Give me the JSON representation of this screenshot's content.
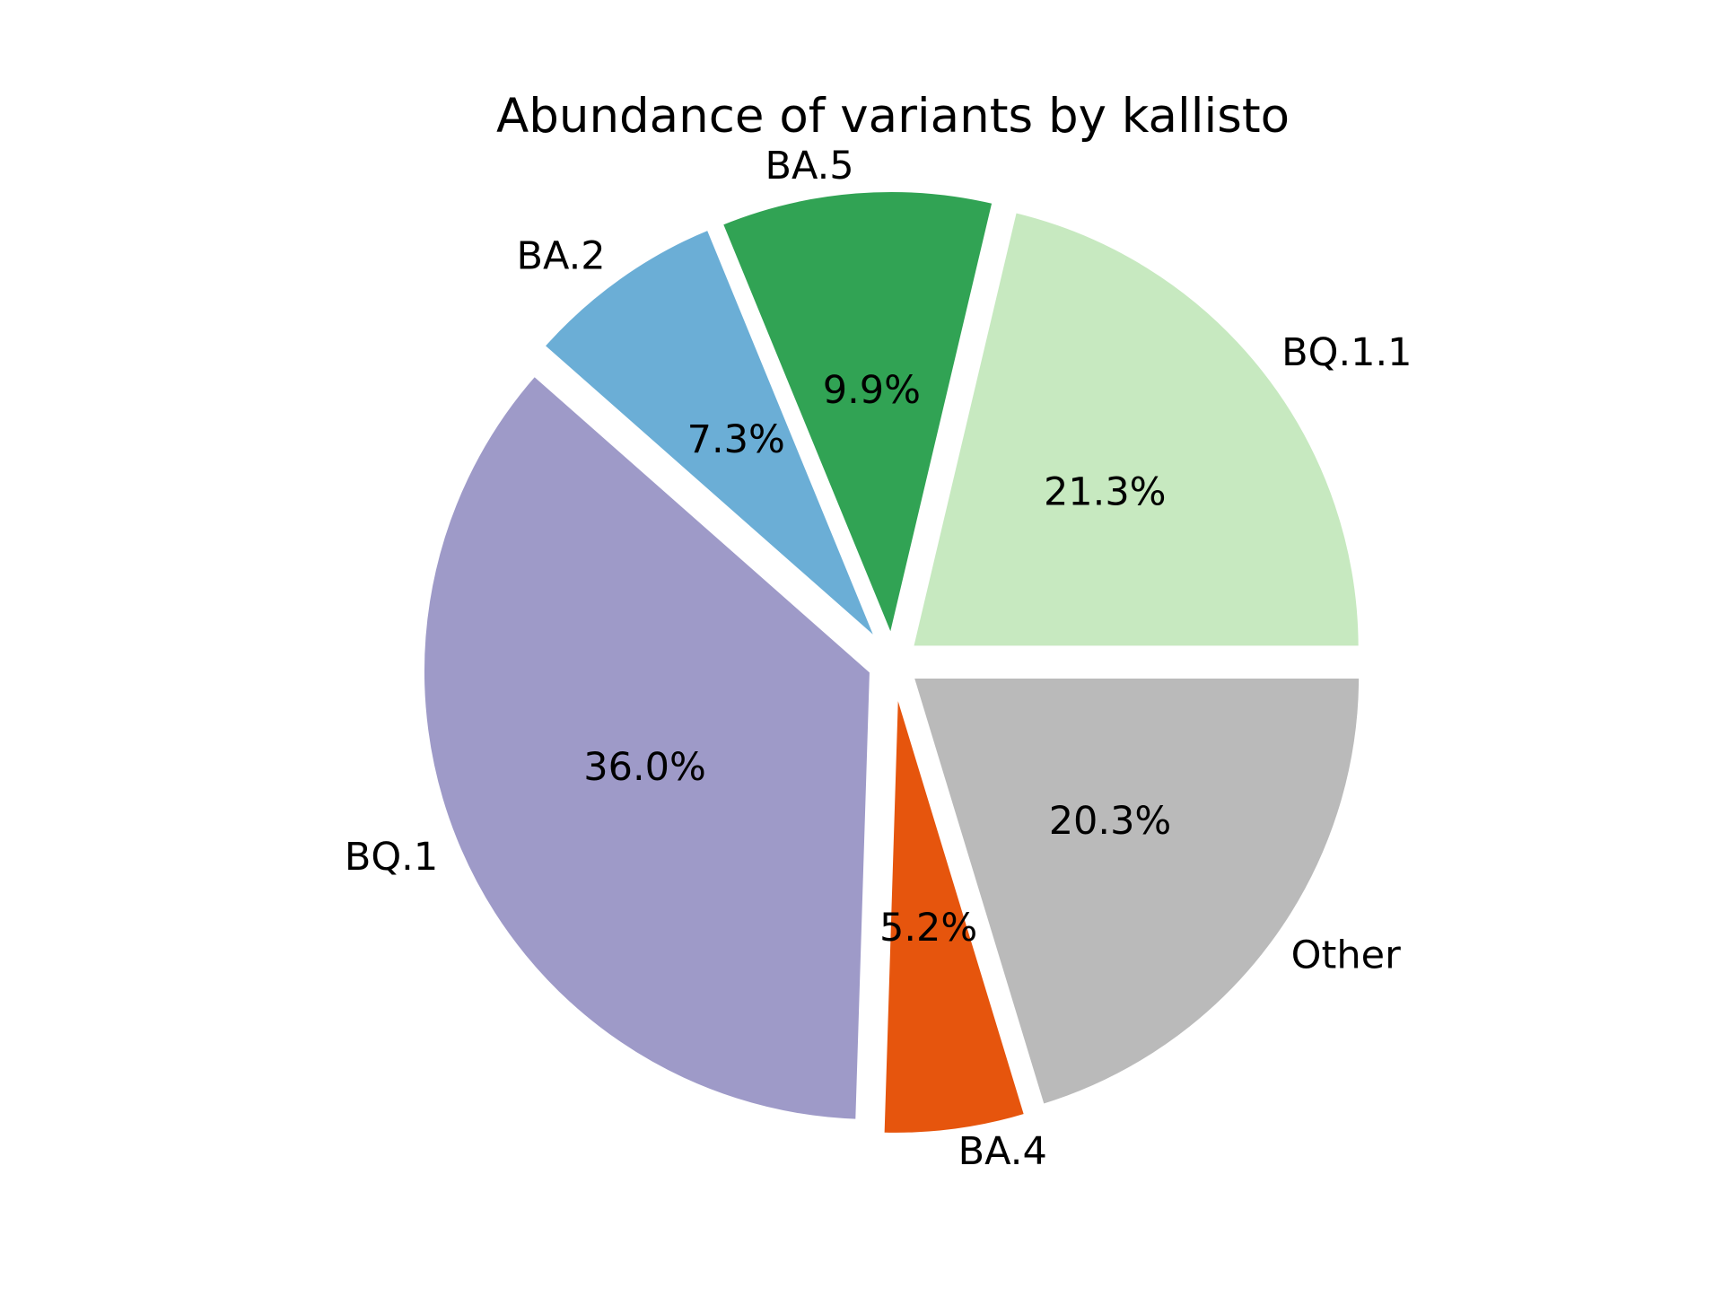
{
  "chart_data": {
    "type": "pie",
    "title": "Abundance of variants by kallisto",
    "slices": [
      {
        "label": "BQ.1.1",
        "value": 21.3,
        "pct_label": "21.3%",
        "color": "#c7e9c0"
      },
      {
        "label": "BA.5",
        "value": 9.9,
        "pct_label": "9.9%",
        "color": "#31a354"
      },
      {
        "label": "BA.2",
        "value": 7.3,
        "pct_label": "7.3%",
        "color": "#6baed6"
      },
      {
        "label": "BQ.1",
        "value": 36.0,
        "pct_label": "36.0%",
        "color": "#9e9ac8"
      },
      {
        "label": "BA.4",
        "value": 5.2,
        "pct_label": "5.2%",
        "color": "#e6550d"
      },
      {
        "label": "Other",
        "value": 20.3,
        "pct_label": "20.3%",
        "color": "#bababa"
      }
    ],
    "start_angle_deg": 0,
    "direction": "counterclockwise",
    "legend": "none"
  }
}
